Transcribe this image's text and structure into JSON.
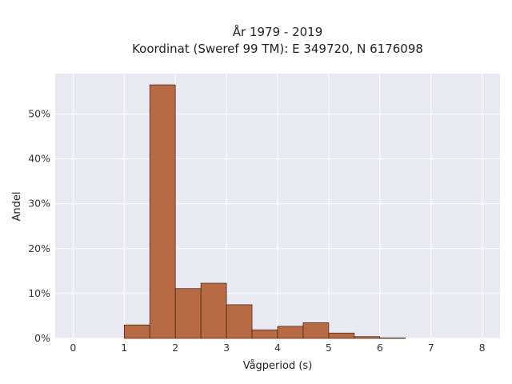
{
  "chart_data": {
    "type": "bar",
    "title": [
      "År 1979 - 2019",
      "Koordinat (Sweref 99 TM): E 349720, N 6176098"
    ],
    "xlabel": "Vågperiod (s)",
    "ylabel": "Andel",
    "xlim": [
      -0.35,
      8.35
    ],
    "ylim": [
      0,
      0.59
    ],
    "x_ticks": [
      0,
      1,
      2,
      3,
      4,
      5,
      6,
      7,
      8
    ],
    "x_tick_labels": [
      "0",
      "1",
      "2",
      "3",
      "4",
      "5",
      "6",
      "7",
      "8"
    ],
    "y_ticks": [
      0,
      0.1,
      0.2,
      0.3,
      0.4,
      0.5
    ],
    "y_tick_labels": [
      "0%",
      "10%",
      "20%",
      "30%",
      "40%",
      "50%"
    ],
    "grid": true,
    "bin_width": 0.5,
    "bins": [
      {
        "start": 1.0,
        "value": 0.03
      },
      {
        "start": 1.5,
        "value": 0.565
      },
      {
        "start": 2.0,
        "value": 0.111
      },
      {
        "start": 2.5,
        "value": 0.123
      },
      {
        "start": 3.0,
        "value": 0.075
      },
      {
        "start": 3.5,
        "value": 0.019
      },
      {
        "start": 4.0,
        "value": 0.027
      },
      {
        "start": 4.5,
        "value": 0.035
      },
      {
        "start": 5.0,
        "value": 0.012
      },
      {
        "start": 5.5,
        "value": 0.004
      },
      {
        "start": 6.0,
        "value": 0.001
      }
    ],
    "colors": {
      "bar": "#b86a45",
      "bar_edge": "#3b2416",
      "plot_bg": "#e9e9f1",
      "grid": "#ffffff"
    }
  }
}
